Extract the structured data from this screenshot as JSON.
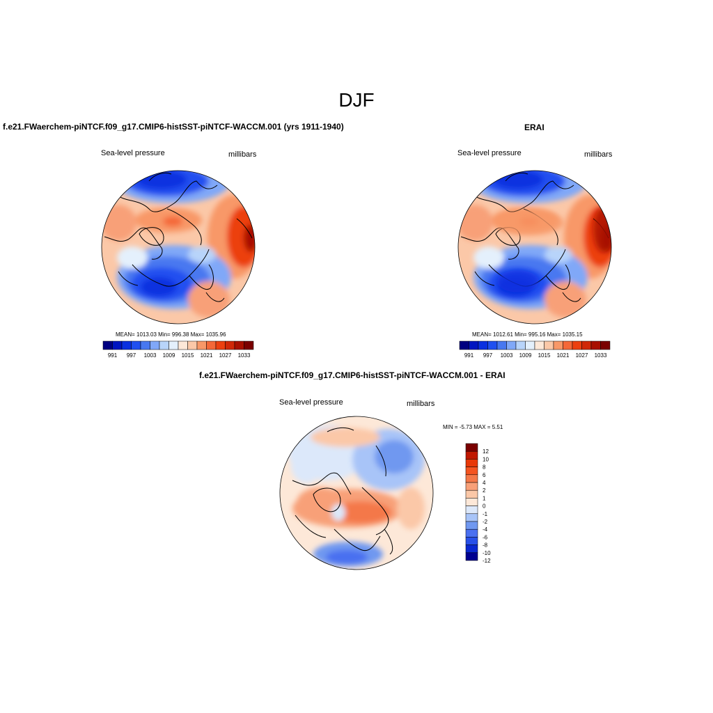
{
  "figure": {
    "title": "DJF"
  },
  "panels": {
    "model": {
      "title": "f.e21.FWaerchem-piNTCF.f09_g17.CMIP6-histSST-piNTCF-WACCM.001 (yrs 1911-1940)",
      "variable": "Sea-level pressure",
      "units": "millibars",
      "stats": "MEAN= 1013.03   Min= 996.38   Max= 1035.96"
    },
    "obs": {
      "title": "ERAI",
      "variable": "Sea-level pressure",
      "units": "millibars",
      "stats": "MEAN= 1012.61   Min= 995.16   Max= 1035.15"
    },
    "diff": {
      "title": "f.e21.FWaerchem-piNTCF.f09_g17.CMIP6-histSST-piNTCF-WACCM.001 - ERAI",
      "variable": "Sea-level pressure",
      "units": "millibars",
      "stats": "MIN =  -5.73 MAX =   5.51"
    }
  },
  "colorbars": {
    "field": {
      "labels": [
        "991",
        "997",
        "1003",
        "1009",
        "1015",
        "1021",
        "1027",
        "1033"
      ],
      "colors": [
        "#000080",
        "#0015c0",
        "#0a30e0",
        "#2050f0",
        "#4878f0",
        "#80a8f8",
        "#b8d4fa",
        "#e4f0fc",
        "#fde8d8",
        "#fbc8a8",
        "#f89868",
        "#f46838",
        "#ec4010",
        "#d02808",
        "#a81000",
        "#7a0000"
      ]
    },
    "diff": {
      "labels": [
        "12",
        "10",
        "8",
        "6",
        "4",
        "2",
        "1",
        "0",
        "-1",
        "-2",
        "-4",
        "-6",
        "-8",
        "-10",
        "-12"
      ],
      "colors": [
        "#7a0000",
        "#c01800",
        "#e83808",
        "#f45420",
        "#f47848",
        "#f8a078",
        "#fbc8a8",
        "#fde8d8",
        "#dce8fa",
        "#a8c4f8",
        "#7098f0",
        "#4a70f0",
        "#2850e8",
        "#0a28d0",
        "#000090"
      ]
    }
  }
}
